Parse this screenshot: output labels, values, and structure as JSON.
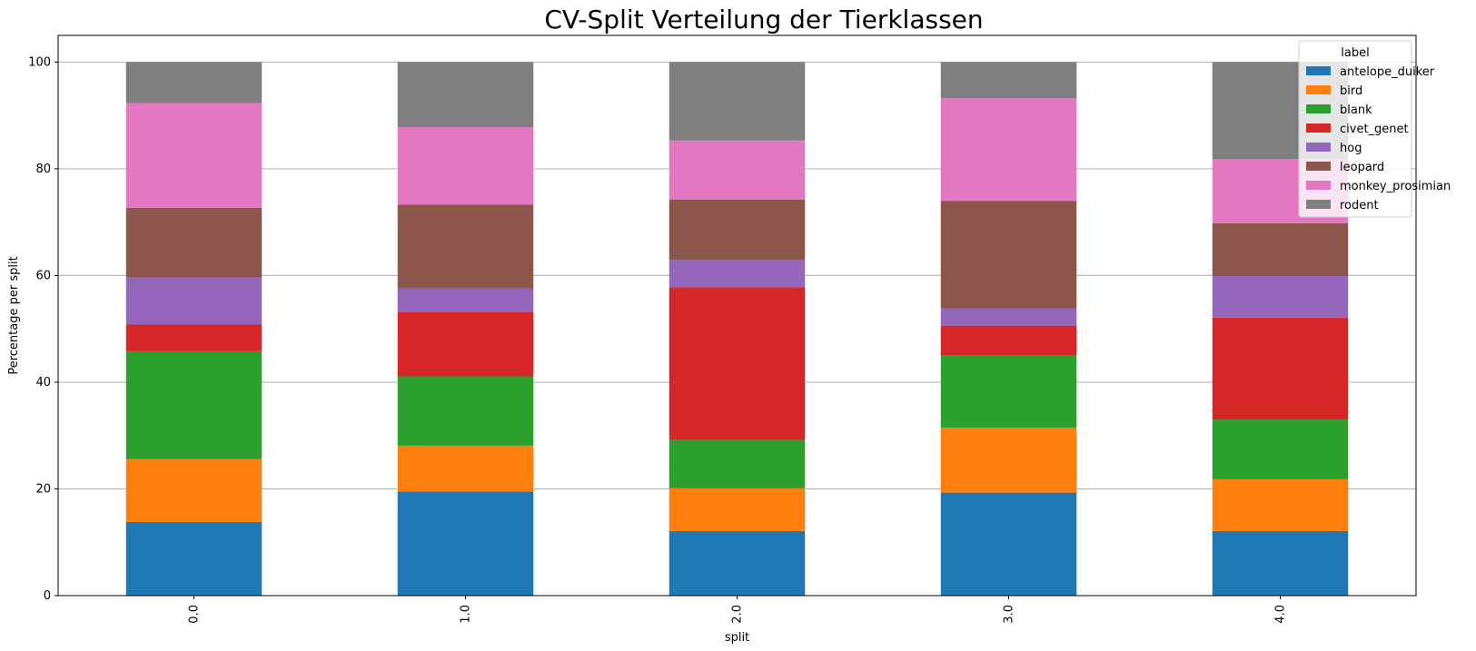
{
  "chart_data": {
    "type": "bar",
    "stacked": true,
    "title": "CV-Split Verteilung der Tierklassen",
    "xlabel": "split",
    "ylabel": "Percentage per split",
    "ylim": [
      0,
      105
    ],
    "yticks": [
      0,
      20,
      40,
      60,
      80,
      100
    ],
    "grid": "y",
    "categories": [
      "0.0",
      "1.0",
      "2.0",
      "3.0",
      "4.0"
    ],
    "legend": {
      "title": "label",
      "placement": "top-right"
    },
    "series": [
      {
        "name": "antelope_duiker",
        "color": "#1f77b4",
        "values": [
          13.8,
          19.5,
          12.1,
          19.3,
          12.1
        ]
      },
      {
        "name": "bird",
        "color": "#ff7f0e",
        "values": [
          11.8,
          8.6,
          8.0,
          12.2,
          9.7
        ]
      },
      {
        "name": "blank",
        "color": "#2ca02c",
        "values": [
          20.2,
          13.0,
          9.1,
          13.6,
          11.2
        ]
      },
      {
        "name": "civet_genet",
        "color": "#d62728",
        "values": [
          5.0,
          12.0,
          28.6,
          5.5,
          19.1
        ]
      },
      {
        "name": "hog",
        "color": "#9467bd",
        "values": [
          8.8,
          4.5,
          5.1,
          3.2,
          7.8
        ]
      },
      {
        "name": "leopard",
        "color": "#8c564b",
        "values": [
          13.1,
          15.7,
          11.3,
          20.2,
          9.9
        ]
      },
      {
        "name": "monkey_prosimian",
        "color": "#e377c2",
        "values": [
          19.6,
          14.5,
          11.1,
          19.2,
          12.0
        ]
      },
      {
        "name": "rodent",
        "color": "#7f7f7f",
        "values": [
          7.7,
          12.2,
          14.7,
          6.8,
          18.2
        ]
      }
    ]
  }
}
